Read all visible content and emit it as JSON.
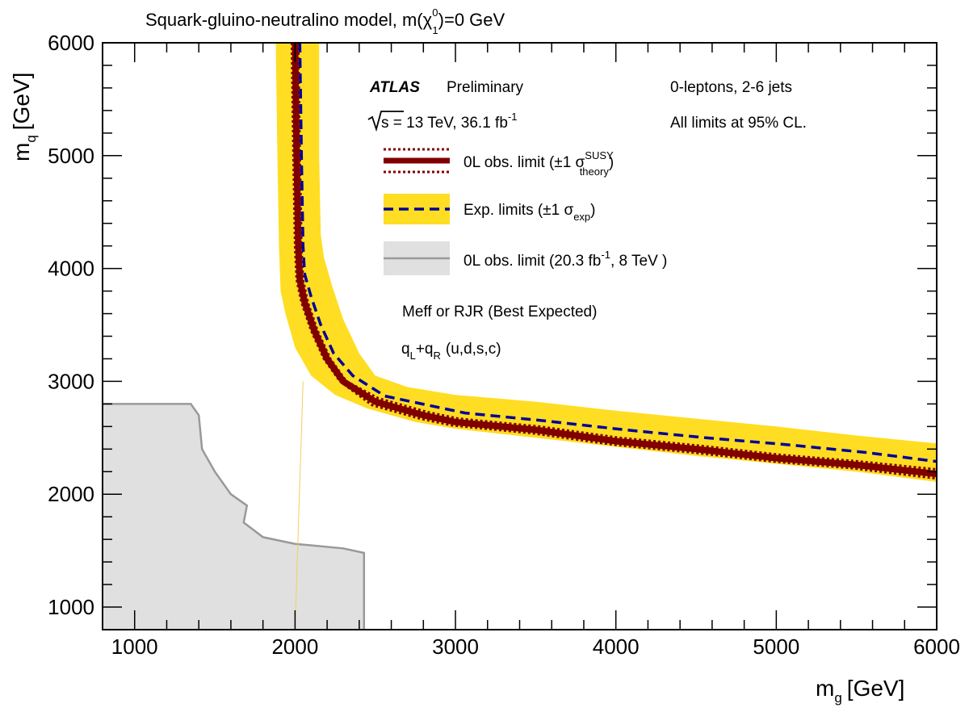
{
  "chart_data": {
    "type": "line",
    "title": "Squark-gluino-neutralino model, m(",
    "title_symbol": "χ",
    "title_sup": "0",
    "title_sub": "1",
    "title_end": ")=0 GeV",
    "xlabel": "m",
    "xlabel_sub": "g",
    "xlabel_unit": "[GeV]",
    "ylabel": "m",
    "ylabel_sub": "q",
    "ylabel_unit": "[GeV]",
    "xlim": [
      800,
      6000
    ],
    "ylim": [
      800,
      6000
    ],
    "xticks": [
      1000,
      2000,
      3000,
      4000,
      5000,
      6000
    ],
    "yticks": [
      1000,
      2000,
      3000,
      4000,
      5000,
      6000
    ],
    "tick_labels_x": [
      "1000",
      "2000",
      "3000",
      "4000",
      "5000",
      "6000"
    ],
    "tick_labels_y": [
      "1000",
      "2000",
      "3000",
      "4000",
      "5000",
      "6000"
    ],
    "colors": {
      "observed": "#800000",
      "expected": "#000099",
      "band": "#ffdd22",
      "band_inner": "#ffee55",
      "run1_fill": "#e0e0e0",
      "run1_line": "#999999"
    },
    "annotations": {
      "atlas": "ATLAS",
      "preliminary": "Preliminary",
      "channel": "0-leptons, 2-6 jets",
      "energy": "s = 13 TeV, 36.1 fb",
      "energy_sup": "-1",
      "cl": "All limits at 95% CL.",
      "strategy": "Meff or RJR (Best Expected)",
      "sq_q1": "q",
      "sq_l": "L",
      "sq_plus": "+",
      "sq_q2": "q",
      "sq_r": "R",
      "sq_list": "(u,d,s,c)"
    },
    "legend": {
      "obs": "0L obs. limit (±1 σ",
      "obs_sup": "SUSY",
      "obs_sub": "theory",
      "obs_end": ")",
      "exp": "Exp. limits (±1 σ",
      "exp_sub": "exp",
      "exp_end": ")",
      "run1": "0L obs. limit (20.3 fb",
      "run1_sup": "-1",
      "run1_end": ", 8 TeV )"
    },
    "series": [
      {
        "points": [
          [
            2000,
            6000
          ],
          [
            2010,
            5000
          ],
          [
            2020,
            4200
          ],
          [
            2030,
            3900
          ],
          [
            2060,
            3700
          ],
          [
            2120,
            3450
          ],
          [
            2200,
            3200
          ],
          [
            2300,
            3000
          ],
          [
            2500,
            2820
          ],
          [
            2800,
            2700
          ],
          [
            3000,
            2640
          ],
          [
            3500,
            2570
          ],
          [
            4000,
            2470
          ],
          [
            4500,
            2400
          ],
          [
            5000,
            2320
          ],
          [
            5500,
            2260
          ],
          [
            6000,
            2180
          ]
        ]
      },
      {
        "points": [
          [
            1980,
            6000
          ],
          [
            1990,
            5000
          ],
          [
            2000,
            4200
          ],
          [
            2010,
            3900
          ],
          [
            2040,
            3700
          ],
          [
            2100,
            3450
          ],
          [
            2180,
            3200
          ],
          [
            2280,
            3000
          ],
          [
            2480,
            2790
          ],
          [
            2780,
            2670
          ],
          [
            2980,
            2610
          ],
          [
            3480,
            2540
          ],
          [
            3980,
            2440
          ],
          [
            4480,
            2370
          ],
          [
            4980,
            2290
          ],
          [
            5480,
            2230
          ],
          [
            6000,
            2140
          ]
        ]
      },
      {
        "points": [
          [
            2020,
            6000
          ],
          [
            2030,
            5000
          ],
          [
            2040,
            4200
          ],
          [
            2050,
            3900
          ],
          [
            2080,
            3700
          ],
          [
            2140,
            3450
          ],
          [
            2220,
            3200
          ],
          [
            2320,
            3000
          ],
          [
            2520,
            2850
          ],
          [
            2820,
            2730
          ],
          [
            3020,
            2670
          ],
          [
            3520,
            2600
          ],
          [
            4020,
            2500
          ],
          [
            4520,
            2430
          ],
          [
            5020,
            2350
          ],
          [
            5520,
            2290
          ],
          [
            6000,
            2220
          ]
        ]
      },
      {
        "points": [
          [
            2030,
            6000
          ],
          [
            2040,
            5000
          ],
          [
            2050,
            4200
          ],
          [
            2060,
            3950
          ],
          [
            2100,
            3750
          ],
          [
            2160,
            3500
          ],
          [
            2240,
            3250
          ],
          [
            2360,
            3050
          ],
          [
            2560,
            2870
          ],
          [
            2860,
            2780
          ],
          [
            3060,
            2720
          ],
          [
            3560,
            2650
          ],
          [
            4060,
            2570
          ],
          [
            4560,
            2500
          ],
          [
            5060,
            2440
          ],
          [
            5560,
            2370
          ],
          [
            6000,
            2290
          ]
        ]
      },
      {
        "points": [
          [
            1880,
            6000
          ],
          [
            1890,
            5000
          ],
          [
            1900,
            4200
          ],
          [
            1910,
            3800
          ],
          [
            1940,
            3600
          ],
          [
            2000,
            3300
          ],
          [
            2100,
            3050
          ],
          [
            2250,
            2880
          ],
          [
            2450,
            2760
          ],
          [
            2750,
            2640
          ],
          [
            3000,
            2580
          ],
          [
            3500,
            2500
          ],
          [
            4000,
            2420
          ],
          [
            4500,
            2340
          ],
          [
            5000,
            2270
          ],
          [
            5500,
            2200
          ],
          [
            6000,
            2110
          ]
        ]
      },
      {
        "points": [
          [
            2150,
            6000
          ],
          [
            2150,
            5000
          ],
          [
            2160,
            4300
          ],
          [
            2180,
            4100
          ],
          [
            2230,
            3850
          ],
          [
            2300,
            3550
          ],
          [
            2400,
            3250
          ],
          [
            2500,
            3050
          ],
          [
            2700,
            2950
          ],
          [
            3000,
            2880
          ],
          [
            3500,
            2820
          ],
          [
            4000,
            2740
          ],
          [
            4500,
            2670
          ],
          [
            5000,
            2600
          ],
          [
            5500,
            2520
          ],
          [
            6000,
            2450
          ]
        ]
      },
      {
        "points": [
          [
            800,
            2800
          ],
          [
            1350,
            2800
          ],
          [
            1400,
            2700
          ],
          [
            1420,
            2400
          ],
          [
            1500,
            2200
          ],
          [
            1600,
            2000
          ],
          [
            1700,
            1900
          ],
          [
            1680,
            1750
          ],
          [
            1800,
            1620
          ],
          [
            2000,
            1560
          ],
          [
            2300,
            1520
          ],
          [
            2430,
            1480
          ],
          [
            2430,
            800
          ]
        ]
      }
    ]
  }
}
